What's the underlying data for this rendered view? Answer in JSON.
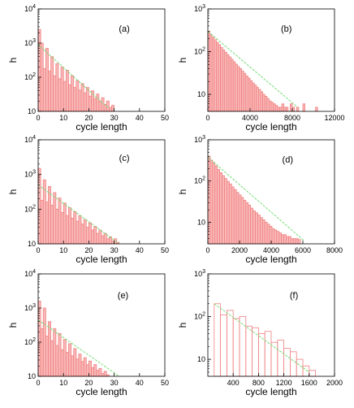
{
  "chart_data": [
    {
      "type": "bar",
      "panel_label": "(a)",
      "xlabel": "cycle length",
      "ylabel": "h",
      "xlim": [
        0,
        50
      ],
      "ylim": [
        10,
        10000
      ],
      "yscale": "log",
      "xticks": [
        0,
        10,
        20,
        30,
        40,
        50
      ],
      "xtick_labels": [
        "0",
        "10",
        "20",
        "30",
        "40",
        "50"
      ],
      "ytick_labels": [
        "10",
        "10^2",
        "10^3",
        "10^4"
      ],
      "bin_width": 1,
      "bins": [
        [
          0,
          2500
        ],
        [
          1,
          1000
        ],
        [
          2,
          180
        ],
        [
          3,
          700
        ],
        [
          4,
          150
        ],
        [
          5,
          400
        ],
        [
          6,
          110
        ],
        [
          7,
          250
        ],
        [
          8,
          90
        ],
        [
          9,
          200
        ],
        [
          10,
          75
        ],
        [
          11,
          160
        ],
        [
          12,
          60
        ],
        [
          13,
          110
        ],
        [
          14,
          50
        ],
        [
          15,
          80
        ],
        [
          16,
          42
        ],
        [
          17,
          65
        ],
        [
          18,
          35
        ],
        [
          19,
          50
        ],
        [
          20,
          28
        ],
        [
          21,
          40
        ],
        [
          22,
          24
        ],
        [
          23,
          32
        ],
        [
          24,
          20
        ],
        [
          25,
          25
        ],
        [
          26,
          16
        ],
        [
          27,
          20
        ],
        [
          28,
          13
        ],
        [
          29,
          15
        ]
      ],
      "fit_line": {
        "x": [
          0,
          28
        ],
        "y": [
          900,
          12
        ]
      },
      "colors": {
        "bars": "#f08080",
        "fit": "#77dd77"
      }
    },
    {
      "type": "bar",
      "panel_label": "(b)",
      "xlabel": "cycle length",
      "ylabel": "h",
      "xlim": [
        0,
        12000
      ],
      "ylim": [
        4,
        1000
      ],
      "yscale": "log",
      "xticks": [
        0,
        4000,
        8000,
        12000
      ],
      "xtick_labels": [
        "0",
        "4000",
        "8000",
        "12000"
      ],
      "ytick_labels": [
        "10",
        "10^2",
        "10^3"
      ],
      "bin_width": 200,
      "bins": [
        [
          0,
          300
        ],
        [
          200,
          250
        ],
        [
          400,
          215
        ],
        [
          600,
          190
        ],
        [
          800,
          165
        ],
        [
          1000,
          145
        ],
        [
          1200,
          125
        ],
        [
          1400,
          110
        ],
        [
          1600,
          97
        ],
        [
          1800,
          85
        ],
        [
          2000,
          75
        ],
        [
          2200,
          66
        ],
        [
          2400,
          58
        ],
        [
          2600,
          51
        ],
        [
          2800,
          45
        ],
        [
          3000,
          40
        ],
        [
          3200,
          35
        ],
        [
          3400,
          31
        ],
        [
          3600,
          27
        ],
        [
          3800,
          24
        ],
        [
          4000,
          21
        ],
        [
          4200,
          18.5
        ],
        [
          4400,
          16.5
        ],
        [
          4600,
          14.5
        ],
        [
          4800,
          13
        ],
        [
          5000,
          11.5
        ],
        [
          5200,
          10
        ],
        [
          5400,
          9
        ],
        [
          5600,
          8
        ],
        [
          5800,
          7
        ],
        [
          6000,
          6.5
        ],
        [
          6200,
          6
        ],
        [
          6400,
          5.5
        ],
        [
          6600,
          5
        ],
        [
          6800,
          5
        ],
        [
          7000,
          6
        ],
        [
          7200,
          5
        ],
        [
          7400,
          5
        ],
        [
          7800,
          6
        ],
        [
          8000,
          5
        ],
        [
          8400,
          5
        ],
        [
          9000,
          6
        ],
        [
          10200,
          5
        ]
      ],
      "fit_line": {
        "x": [
          0,
          8500
        ],
        "y": [
          300,
          5
        ]
      },
      "colors": {
        "bars": "#f08080",
        "fit": "#77dd77"
      }
    },
    {
      "type": "bar",
      "panel_label": "(c)",
      "xlabel": "cycle length",
      "ylabel": "h",
      "xlim": [
        0,
        50
      ],
      "ylim": [
        10,
        10000
      ],
      "yscale": "log",
      "xticks": [
        0,
        10,
        20,
        30,
        40,
        50
      ],
      "xtick_labels": [
        "0",
        "10",
        "20",
        "30",
        "40",
        "50"
      ],
      "ytick_labels": [
        "10",
        "10^2",
        "10^3",
        "10^4"
      ],
      "bin_width": 1,
      "bins": [
        [
          0,
          1500
        ],
        [
          1,
          180
        ],
        [
          2,
          700
        ],
        [
          3,
          160
        ],
        [
          4,
          450
        ],
        [
          5,
          130
        ],
        [
          6,
          300
        ],
        [
          7,
          100
        ],
        [
          8,
          210
        ],
        [
          9,
          80
        ],
        [
          10,
          150
        ],
        [
          11,
          65
        ],
        [
          12,
          110
        ],
        [
          13,
          55
        ],
        [
          14,
          85
        ],
        [
          15,
          45
        ],
        [
          16,
          65
        ],
        [
          17,
          37
        ],
        [
          18,
          50
        ],
        [
          19,
          30
        ],
        [
          20,
          40
        ],
        [
          21,
          25
        ],
        [
          22,
          32
        ],
        [
          23,
          20
        ],
        [
          24,
          25
        ],
        [
          25,
          17
        ],
        [
          26,
          20
        ],
        [
          27,
          14
        ],
        [
          28,
          16
        ],
        [
          29,
          12
        ],
        [
          30,
          14
        ],
        [
          31,
          11
        ]
      ],
      "fit_line": {
        "x": [
          0,
          32
        ],
        "y": [
          500,
          10
        ]
      },
      "colors": {
        "bars": "#f08080",
        "fit": "#77dd77"
      }
    },
    {
      "type": "bar",
      "panel_label": "(d)",
      "xlabel": "cycle length",
      "ylabel": "h",
      "xlim": [
        0,
        8000
      ],
      "ylim": [
        3,
        1000
      ],
      "yscale": "log",
      "xticks": [
        0,
        2000,
        4000,
        6000,
        8000
      ],
      "xtick_labels": [
        "0",
        "2000",
        "4000",
        "6000",
        "8000"
      ],
      "ytick_labels": [
        "10",
        "10^2",
        "10^3"
      ],
      "bin_width": 150,
      "bins": [
        [
          0,
          400
        ],
        [
          150,
          320
        ],
        [
          300,
          280
        ],
        [
          450,
          230
        ],
        [
          600,
          190
        ],
        [
          750,
          160
        ],
        [
          900,
          135
        ],
        [
          1050,
          115
        ],
        [
          1200,
          98
        ],
        [
          1350,
          85
        ],
        [
          1500,
          72
        ],
        [
          1650,
          62
        ],
        [
          1800,
          53
        ],
        [
          1950,
          46
        ],
        [
          2100,
          40
        ],
        [
          2250,
          34
        ],
        [
          2400,
          30
        ],
        [
          2550,
          26
        ],
        [
          2700,
          22
        ],
        [
          2850,
          19
        ],
        [
          3000,
          17
        ],
        [
          3150,
          15
        ],
        [
          3300,
          13
        ],
        [
          3450,
          11.5
        ],
        [
          3600,
          10
        ],
        [
          3750,
          9
        ],
        [
          3900,
          8
        ],
        [
          4050,
          7
        ],
        [
          4200,
          6.5
        ],
        [
          4350,
          6
        ],
        [
          4500,
          5.5
        ],
        [
          4650,
          5
        ],
        [
          4800,
          5
        ],
        [
          4950,
          4.5
        ],
        [
          5100,
          4.5
        ],
        [
          5250,
          4
        ],
        [
          5400,
          4
        ],
        [
          5550,
          4
        ],
        [
          5700,
          3.8
        ]
      ],
      "fit_line": {
        "x": [
          0,
          6100
        ],
        "y": [
          380,
          3.5
        ]
      },
      "colors": {
        "bars": "#f08080",
        "fit": "#77dd77"
      }
    },
    {
      "type": "bar",
      "panel_label": "(e)",
      "xlabel": "cycle length",
      "ylabel": "h",
      "xlim": [
        0,
        50
      ],
      "ylim": [
        10,
        10000
      ],
      "yscale": "log",
      "xticks": [
        0,
        10,
        20,
        30,
        40,
        50
      ],
      "xtick_labels": [
        "0",
        "10",
        "20",
        "30",
        "40",
        "50"
      ],
      "ytick_labels": [
        "10",
        "10^2",
        "10^3",
        "10^4"
      ],
      "bin_width": 1,
      "bins": [
        [
          0,
          1600
        ],
        [
          1,
          250
        ],
        [
          2,
          1000
        ],
        [
          3,
          150
        ],
        [
          4,
          400
        ],
        [
          5,
          110
        ],
        [
          6,
          250
        ],
        [
          7,
          80
        ],
        [
          8,
          180
        ],
        [
          9,
          60
        ],
        [
          10,
          120
        ],
        [
          11,
          50
        ],
        [
          12,
          90
        ],
        [
          13,
          40
        ],
        [
          14,
          65
        ],
        [
          15,
          32
        ],
        [
          16,
          45
        ],
        [
          17,
          27
        ],
        [
          18,
          35
        ],
        [
          19,
          22
        ],
        [
          20,
          28
        ],
        [
          21,
          18
        ],
        [
          22,
          22
        ],
        [
          23,
          15
        ],
        [
          24,
          17
        ],
        [
          25,
          12
        ],
        [
          26,
          14
        ],
        [
          27,
          11
        ]
      ],
      "fit_line": {
        "x": [
          0,
          32
        ],
        "y": [
          450,
          10
        ]
      },
      "colors": {
        "bars": "#f08080",
        "fit": "#77dd77"
      }
    },
    {
      "type": "bar",
      "panel_label": "(f)",
      "xlabel": "cycle length",
      "ylabel": "h",
      "xlim": [
        0,
        2000
      ],
      "ylim": [
        4,
        1000
      ],
      "yscale": "log",
      "xticks": [
        400,
        800,
        1200,
        1600,
        2000
      ],
      "xtick_labels": [
        "400",
        "800",
        "1200",
        "1600",
        "2000"
      ],
      "ytick_labels": [
        "10",
        "10^2",
        "10^3"
      ],
      "bin_width": 100,
      "bins": [
        [
          100,
          200
        ],
        [
          200,
          110
        ],
        [
          300,
          140
        ],
        [
          400,
          90
        ],
        [
          500,
          100
        ],
        [
          600,
          60
        ],
        [
          700,
          55
        ],
        [
          800,
          40
        ],
        [
          900,
          45
        ],
        [
          1000,
          25
        ],
        [
          1100,
          28
        ],
        [
          1200,
          18
        ],
        [
          1300,
          15
        ],
        [
          1400,
          10
        ],
        [
          1500,
          7
        ],
        [
          1600,
          5.5
        ]
      ],
      "fit_line": {
        "x": [
          100,
          1600
        ],
        "y": [
          200,
          5
        ]
      },
      "colors": {
        "bars": "#f08080",
        "fit": "#77dd77"
      }
    }
  ]
}
